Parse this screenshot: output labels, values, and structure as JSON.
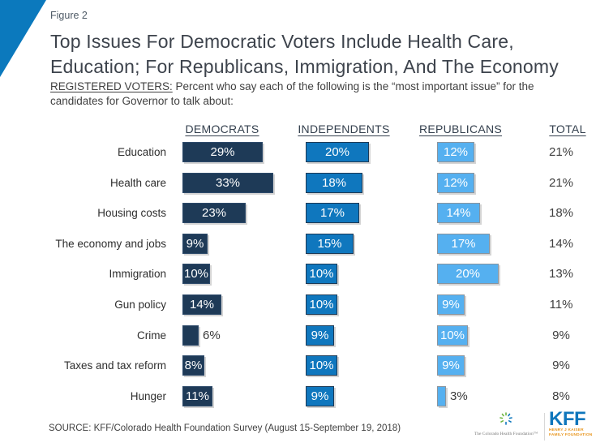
{
  "slide": {
    "figure_label": "Figure 2",
    "title_line1": "Top Issues For Democratic Voters Include Health Care,",
    "title_line2": "Education; For Republicans, Immigration, And The Economy",
    "subtitle_lead": "REGISTERED VOTERS:",
    "subtitle_rest_line1": "Percent who say each of the following is the “most important issue” for the",
    "subtitle_line2": "candidates for Governor to talk about:",
    "source": "SOURCE: KFF/Colorado Health Foundation Survey (August 15-September 19, 2018)",
    "accent_color": "#0b79bd"
  },
  "chart_data": {
    "type": "bar",
    "orientation": "horizontal",
    "grid": false,
    "legend_position": "column-headers",
    "value_suffix": "%",
    "categories": [
      "Education",
      "Health care",
      "Housing costs",
      "The economy and jobs",
      "Immigration",
      "Gun policy",
      "Crime",
      "Taxes and tax reform",
      "Hunger"
    ],
    "series": [
      {
        "name": "DEMOCRATS",
        "color": "#1e3a57",
        "values": [
          29,
          33,
          23,
          9,
          10,
          14,
          6,
          8,
          11
        ]
      },
      {
        "name": "INDEPENDENTS",
        "color": "#0f77be",
        "values": [
          20,
          18,
          17,
          15,
          10,
          10,
          9,
          10,
          9
        ]
      },
      {
        "name": "REPUBLICANS",
        "color": "#55b0f0",
        "values": [
          12,
          12,
          14,
          17,
          20,
          9,
          10,
          9,
          3
        ]
      }
    ],
    "totals": {
      "name": "TOTAL",
      "values": [
        21,
        21,
        18,
        14,
        13,
        11,
        9,
        9,
        8
      ]
    }
  },
  "footer_logos": {
    "colorado_text": "The Colorado Health Foundation™",
    "kff_mark": "KFF",
    "kff_caption_line1": "HENRY J KAISER",
    "kff_caption_line2": "FAMILY FOUNDATION"
  }
}
